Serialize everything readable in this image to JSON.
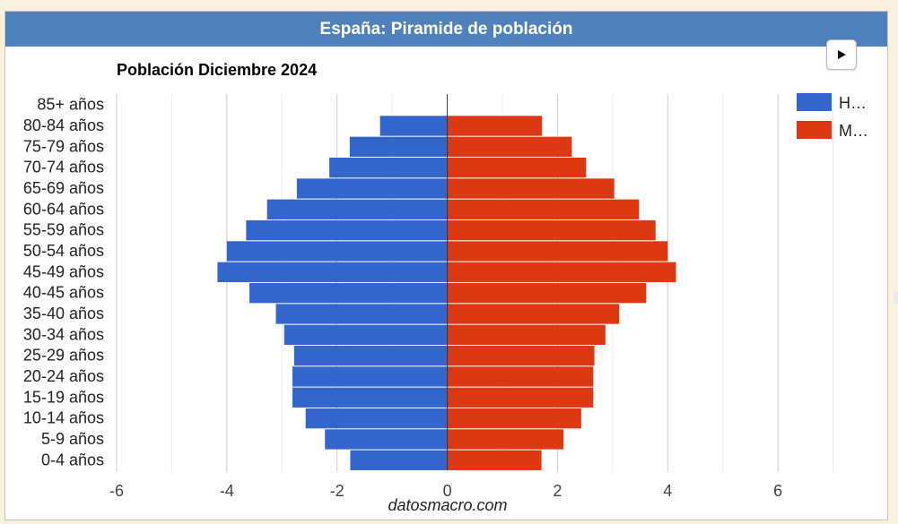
{
  "header": {
    "title": "España: Piramide de población"
  },
  "controls": {
    "play_icon": "play-icon"
  },
  "colors": {
    "hombres": "#3366cc",
    "mujeres": "#dc3912",
    "header_bg": "#4f81bd",
    "page_bg": "#fcf1df"
  },
  "chart_data": {
    "type": "bar",
    "orientation": "horizontal",
    "title": "Población Diciembre 2024",
    "source": "datosmacro.com",
    "categories": [
      "85+ años",
      "80-84 años",
      "75-79 años",
      "70-74 años",
      "65-69 años",
      "60-64 años",
      "55-59 años",
      "50-54 años",
      "45-49 años",
      "40-45 años",
      "35-40 años",
      "30-34 años",
      "25-29 años",
      "20-24 años",
      "15-19 años",
      "10-14 años",
      "5-9 años",
      "0-4 años"
    ],
    "series": [
      {
        "name": "H…",
        "color": "#3366cc",
        "values": [
          0,
          -1.22,
          -1.77,
          -2.14,
          -2.73,
          -3.27,
          -3.65,
          -4.0,
          -4.17,
          -3.59,
          -3.11,
          -2.96,
          -2.78,
          -2.81,
          -2.81,
          -2.57,
          -2.22,
          -1.76
        ]
      },
      {
        "name": "M…",
        "color": "#dc3912",
        "values": [
          0,
          1.72,
          2.26,
          2.52,
          3.03,
          3.48,
          3.78,
          4.0,
          4.15,
          3.61,
          3.12,
          2.87,
          2.67,
          2.65,
          2.65,
          2.43,
          2.11,
          1.71
        ]
      }
    ],
    "xlim": [
      -6,
      8
    ],
    "xticks": [
      -6,
      -4,
      -2,
      0,
      2,
      4,
      6
    ],
    "xtick_labels": [
      "-6",
      "-4",
      "-2",
      "0",
      "2",
      "4",
      "6"
    ],
    "grid": true,
    "legend_position": "right"
  }
}
